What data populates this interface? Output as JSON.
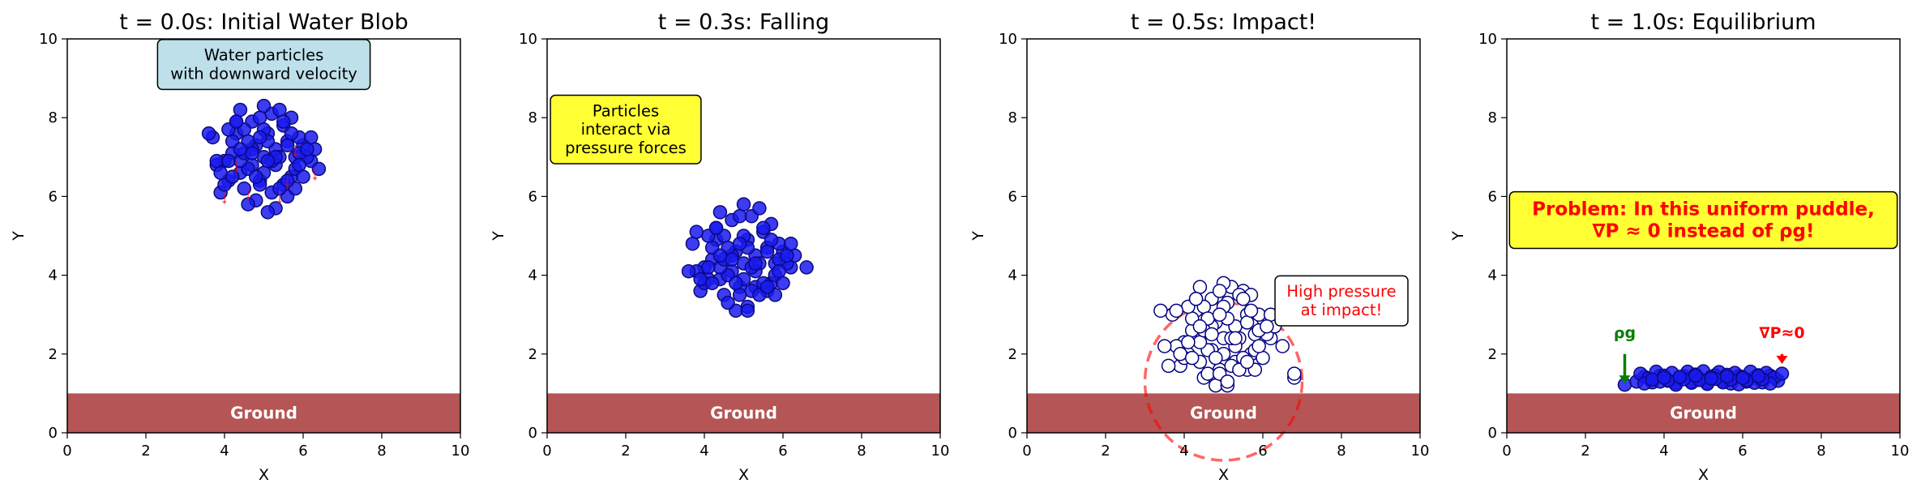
{
  "figure": {
    "background": "#ffffff",
    "ground_color": "#b55555",
    "particle_fill": "#1a1aee",
    "particle_stroke": "#0a0a80",
    "pressure_particle_fill": "#ffffff",
    "pressure_particle_stroke": "#000080",
    "textbox_blue": "#bde0eb",
    "textbox_yellow": "#ffff33",
    "accent_red": "#ff0000",
    "accent_green": "#008000"
  },
  "chart_data": [
    {
      "type": "scatter",
      "title": "t = 0.0s: Initial Water Blob",
      "xlabel": "X",
      "ylabel": "Y",
      "xlim": [
        0,
        10
      ],
      "ylim": [
        0,
        10
      ],
      "xticks": [
        "0",
        "2",
        "4",
        "6",
        "8",
        "10"
      ],
      "yticks": [
        "0",
        "2",
        "4",
        "6",
        "8",
        "10"
      ],
      "grid": false,
      "ground": {
        "label": "Ground",
        "y_range": [
          0,
          1
        ]
      },
      "particle_style": "filled",
      "particles": {
        "x": [
          5.0,
          5.3,
          4.7,
          5.6,
          4.4,
          5.1,
          4.9,
          5.5,
          4.5,
          5.8,
          4.2,
          5.2,
          4.8,
          6.0,
          4.0,
          5.4,
          4.6,
          5.7,
          4.3,
          6.2,
          3.9,
          5.0,
          5.3,
          4.7,
          5.9,
          4.1,
          5.6,
          4.4,
          6.1,
          3.8,
          5.1,
          4.9,
          5.5,
          4.5,
          5.8,
          4.2,
          6.3,
          3.7,
          5.2,
          4.8,
          5.0,
          5.4,
          4.6,
          5.7,
          4.3,
          6.0,
          4.0,
          5.3,
          4.7,
          5.6,
          4.4,
          5.9,
          4.1,
          6.2,
          3.9,
          5.1,
          4.9,
          5.5,
          4.5,
          5.8,
          4.2,
          6.1,
          3.8,
          5.2,
          4.8,
          5.0,
          5.4,
          4.6,
          5.7,
          4.3,
          6.4,
          3.6,
          5.3,
          4.7,
          5.6,
          4.4,
          5.9,
          4.1,
          5.1,
          4.9
        ],
        "y": [
          7.0,
          7.2,
          6.8,
          7.4,
          6.6,
          7.6,
          6.4,
          7.8,
          6.2,
          7.0,
          7.1,
          8.1,
          5.9,
          7.3,
          6.9,
          8.2,
          5.8,
          6.5,
          7.6,
          6.9,
          6.1,
          8.3,
          5.7,
          7.9,
          7.5,
          6.4,
          6.0,
          8.2,
          7.0,
          6.8,
          5.6,
          8.0,
          6.3,
          7.7,
          6.7,
          7.4,
          7.2,
          7.5,
          6.1,
          7.3,
          6.6,
          7.0,
          6.7,
          8.0,
          7.9,
          6.5,
          6.3,
          6.8,
          7.2,
          7.3,
          6.9,
          7.1,
          7.7,
          7.5,
          6.6,
          7.4,
          6.3,
          7.9,
          7.1,
          6.2,
          6.5,
          7.2,
          6.9,
          6.9,
          6.5,
          7.7,
          6.2,
          7.4,
          7.6,
          7.9,
          6.7,
          7.6,
          7.0,
          7.1,
          6.4,
          7.2,
          6.8,
          6.9,
          6.9,
          7.5
        ]
      },
      "velocity_arrows": {
        "color": "#ff0000",
        "points": [
          {
            "x": 4.0,
            "y": 6.1
          },
          {
            "x": 4.6,
            "y": 6.2
          },
          {
            "x": 5.4,
            "y": 6.1
          },
          {
            "x": 6.3,
            "y": 6.7
          },
          {
            "x": 4.3,
            "y": 6.9
          },
          {
            "x": 5.8,
            "y": 7.3
          },
          {
            "x": 5.6,
            "y": 6.5
          }
        ],
        "dy": -0.3
      },
      "annotations": [
        {
          "id": "note",
          "text_lines": [
            "Water particles",
            "with downward velocity"
          ],
          "x": 5.0,
          "y": 9.35,
          "box": "blue",
          "text_color": "#000000",
          "bold": false
        }
      ]
    },
    {
      "type": "scatter",
      "title": "t = 0.3s: Falling",
      "xlabel": "X",
      "ylabel": "Y",
      "xlim": [
        0,
        10
      ],
      "ylim": [
        0,
        10
      ],
      "xticks": [
        "0",
        "2",
        "4",
        "6",
        "8",
        "10"
      ],
      "yticks": [
        "0",
        "2",
        "4",
        "6",
        "8",
        "10"
      ],
      "grid": false,
      "ground": {
        "label": "Ground",
        "y_range": [
          0,
          1
        ]
      },
      "particle_style": "filled",
      "particles": {
        "x": [
          5.0,
          5.3,
          4.7,
          5.6,
          4.4,
          5.1,
          4.9,
          5.5,
          4.5,
          5.8,
          4.2,
          5.2,
          4.8,
          6.0,
          4.0,
          5.4,
          4.6,
          5.7,
          4.3,
          6.2,
          3.9,
          5.0,
          5.3,
          4.7,
          5.9,
          4.1,
          5.6,
          4.4,
          6.1,
          3.8,
          5.1,
          4.9,
          5.5,
          4.5,
          5.8,
          4.2,
          6.3,
          3.7,
          5.2,
          4.8,
          5.0,
          5.4,
          4.6,
          5.7,
          4.3,
          6.0,
          4.0,
          5.3,
          4.7,
          5.6,
          4.4,
          5.9,
          4.1,
          6.2,
          3.9,
          5.1,
          4.9,
          5.5,
          4.5,
          5.8,
          4.2,
          6.1,
          3.8,
          5.2,
          4.8,
          5.0,
          5.4,
          4.6,
          5.7,
          4.3,
          6.6,
          3.6,
          5.3,
          4.7,
          5.6,
          4.4,
          5.9,
          4.1,
          5.1,
          4.9
        ],
        "y": [
          4.3,
          4.5,
          4.1,
          4.7,
          3.9,
          4.9,
          3.7,
          5.1,
          3.5,
          4.3,
          4.4,
          5.5,
          3.1,
          4.6,
          4.2,
          5.7,
          3.3,
          3.8,
          4.9,
          4.2,
          3.6,
          5.8,
          3.7,
          5.4,
          4.8,
          3.9,
          3.6,
          5.6,
          4.3,
          4.1,
          3.2,
          5.5,
          3.8,
          5.0,
          4.0,
          4.7,
          4.5,
          4.8,
          3.6,
          4.6,
          3.9,
          4.3,
          4.0,
          5.3,
          5.2,
          3.8,
          3.8,
          4.1,
          4.5,
          4.6,
          4.2,
          4.4,
          5.0,
          4.8,
          3.9,
          4.7,
          3.5,
          5.2,
          4.4,
          3.5,
          3.8,
          4.5,
          5.1,
          4.2,
          3.8,
          5.0,
          3.5,
          4.7,
          4.9,
          5.2,
          4.2,
          4.1,
          4.3,
          4.4,
          3.7,
          4.5,
          4.1,
          4.2,
          3.1,
          4.8
        ]
      },
      "annotations": [
        {
          "id": "note",
          "text_lines": [
            "Particles",
            "interact via",
            "pressure forces"
          ],
          "x": 2.0,
          "y": 7.7,
          "box": "yellow",
          "text_color": "#000000",
          "bold": false
        }
      ]
    },
    {
      "type": "scatter",
      "title": "t = 0.5s: Impact!",
      "xlabel": "X",
      "ylabel": "Y",
      "xlim": [
        0,
        10
      ],
      "ylim": [
        0,
        10
      ],
      "xticks": [
        "0",
        "2",
        "4",
        "6",
        "8",
        "10"
      ],
      "yticks": [
        "0",
        "2",
        "4",
        "6",
        "8",
        "10"
      ],
      "grid": false,
      "ground": {
        "label": "Ground",
        "y_range": [
          0,
          1
        ]
      },
      "particle_style": "hollow",
      "particles": {
        "x": [
          5.0,
          5.3,
          4.7,
          5.6,
          4.4,
          5.1,
          4.9,
          5.5,
          4.5,
          5.8,
          4.2,
          5.2,
          4.8,
          6.0,
          4.0,
          5.4,
          4.6,
          5.7,
          4.3,
          6.2,
          3.9,
          5.0,
          5.3,
          4.7,
          5.9,
          4.1,
          5.6,
          4.4,
          6.1,
          3.8,
          5.1,
          4.9,
          5.5,
          4.5,
          5.8,
          4.2,
          6.3,
          3.7,
          5.2,
          4.8,
          5.0,
          5.4,
          4.6,
          5.7,
          4.3,
          6.0,
          4.0,
          5.3,
          4.7,
          5.6,
          4.4,
          5.9,
          4.1,
          6.2,
          3.9,
          5.1,
          4.9,
          5.5,
          4.5,
          5.8,
          4.2,
          6.1,
          3.8,
          5.2,
          4.8,
          5.0,
          5.4,
          4.6,
          5.7,
          4.3,
          6.8,
          3.5,
          5.3,
          4.7,
          5.6,
          4.4,
          5.9,
          4.1,
          5.1,
          4.9,
          6.5,
          3.6,
          6.8,
          3.4
        ],
        "y": [
          2.4,
          2.7,
          2.1,
          3.0,
          1.8,
          3.3,
          1.6,
          3.6,
          1.4,
          2.5,
          2.6,
          3.7,
          1.2,
          2.9,
          2.3,
          3.5,
          1.5,
          2.0,
          3.1,
          2.4,
          1.7,
          3.8,
          1.8,
          3.4,
          3.0,
          2.0,
          1.6,
          3.7,
          2.5,
          2.2,
          1.2,
          3.6,
          1.9,
          3.2,
          2.1,
          2.9,
          2.7,
          3.0,
          1.7,
          2.8,
          2.0,
          2.4,
          2.1,
          3.5,
          3.4,
          1.9,
          1.9,
          2.2,
          2.7,
          2.8,
          2.3,
          2.6,
          3.2,
          3.0,
          2.0,
          2.9,
          1.5,
          3.4,
          2.6,
          1.6,
          1.9,
          2.7,
          3.1,
          2.4,
          1.9,
          3.2,
          1.6,
          2.9,
          3.1,
          3.4,
          1.4,
          2.2,
          2.4,
          2.5,
          1.8,
          2.7,
          2.2,
          2.3,
          1.3,
          3.0,
          2.2,
          1.7,
          1.5,
          3.1
        ]
      },
      "pressure_zone": {
        "cx": 5.0,
        "cy": 1.3,
        "r": 2.0,
        "color": "#ff0000"
      },
      "annotations": [
        {
          "id": "note",
          "text_lines": [
            "High pressure",
            "at impact!"
          ],
          "x": 8.0,
          "y": 3.35,
          "box": "white",
          "text_color": "#ff0000",
          "bold": false
        }
      ]
    },
    {
      "type": "scatter",
      "title": "t = 1.0s: Equilibrium",
      "xlabel": "X",
      "ylabel": "Y",
      "xlim": [
        0,
        10
      ],
      "ylim": [
        0,
        10
      ],
      "xticks": [
        "0",
        "2",
        "4",
        "6",
        "8",
        "10"
      ],
      "yticks": [
        "0",
        "2",
        "4",
        "6",
        "8",
        "10"
      ],
      "grid": false,
      "ground": {
        "label": "Ground",
        "y_range": [
          0,
          1
        ]
      },
      "particle_style": "filled",
      "particles": {
        "x": [
          3.0,
          3.3,
          3.5,
          3.7,
          3.9,
          4.1,
          4.3,
          4.5,
          4.7,
          4.9,
          5.1,
          5.3,
          5.5,
          5.7,
          5.9,
          6.1,
          6.3,
          6.5,
          6.7,
          6.9,
          3.4,
          3.6,
          3.8,
          4.0,
          4.2,
          4.4,
          4.6,
          4.8,
          5.0,
          5.2,
          5.4,
          5.6,
          5.8,
          6.0,
          6.2,
          6.4,
          6.6,
          6.8,
          3.5,
          3.9,
          4.3,
          4.7,
          5.1,
          5.5,
          5.9,
          6.3,
          6.7,
          3.7,
          4.1,
          4.5,
          4.9,
          5.3,
          5.7,
          6.1,
          6.5,
          4.0,
          4.4,
          4.8,
          5.2,
          5.6,
          6.0,
          6.4,
          7.0
        ],
        "y": [
          1.22,
          1.3,
          1.42,
          1.28,
          1.45,
          1.32,
          1.26,
          1.44,
          1.3,
          1.38,
          1.27,
          1.46,
          1.32,
          1.25,
          1.44,
          1.3,
          1.4,
          1.28,
          1.45,
          1.32,
          1.5,
          1.38,
          1.55,
          1.45,
          1.52,
          1.4,
          1.55,
          1.48,
          1.56,
          1.42,
          1.54,
          1.47,
          1.52,
          1.42,
          1.55,
          1.46,
          1.52,
          1.4,
          1.25,
          1.3,
          1.22,
          1.27,
          1.24,
          1.28,
          1.23,
          1.27,
          1.25,
          1.35,
          1.33,
          1.36,
          1.34,
          1.37,
          1.35,
          1.33,
          1.36,
          1.4,
          1.42,
          1.45,
          1.38,
          1.43,
          1.39,
          1.44,
          1.5
        ]
      },
      "force_arrows": [
        {
          "id": "rho-g",
          "label": "ρg",
          "x": 3.0,
          "y_from": 2.0,
          "y_to": 1.25,
          "color": "#008000",
          "label_y": 2.55
        },
        {
          "id": "grad-p",
          "label": "∇P≈0",
          "x": 7.0,
          "y_from": 2.0,
          "y_to": 1.75,
          "color": "#ff0000",
          "label_y": 2.55
        }
      ],
      "annotations": [
        {
          "id": "note",
          "text_lines": [
            "Problem: In this uniform puddle,",
            "∇P ≈ 0 instead of ρg!"
          ],
          "x": 5.0,
          "y": 5.4,
          "box": "yellow",
          "text_color": "#ff0000",
          "bold": true
        }
      ]
    }
  ]
}
